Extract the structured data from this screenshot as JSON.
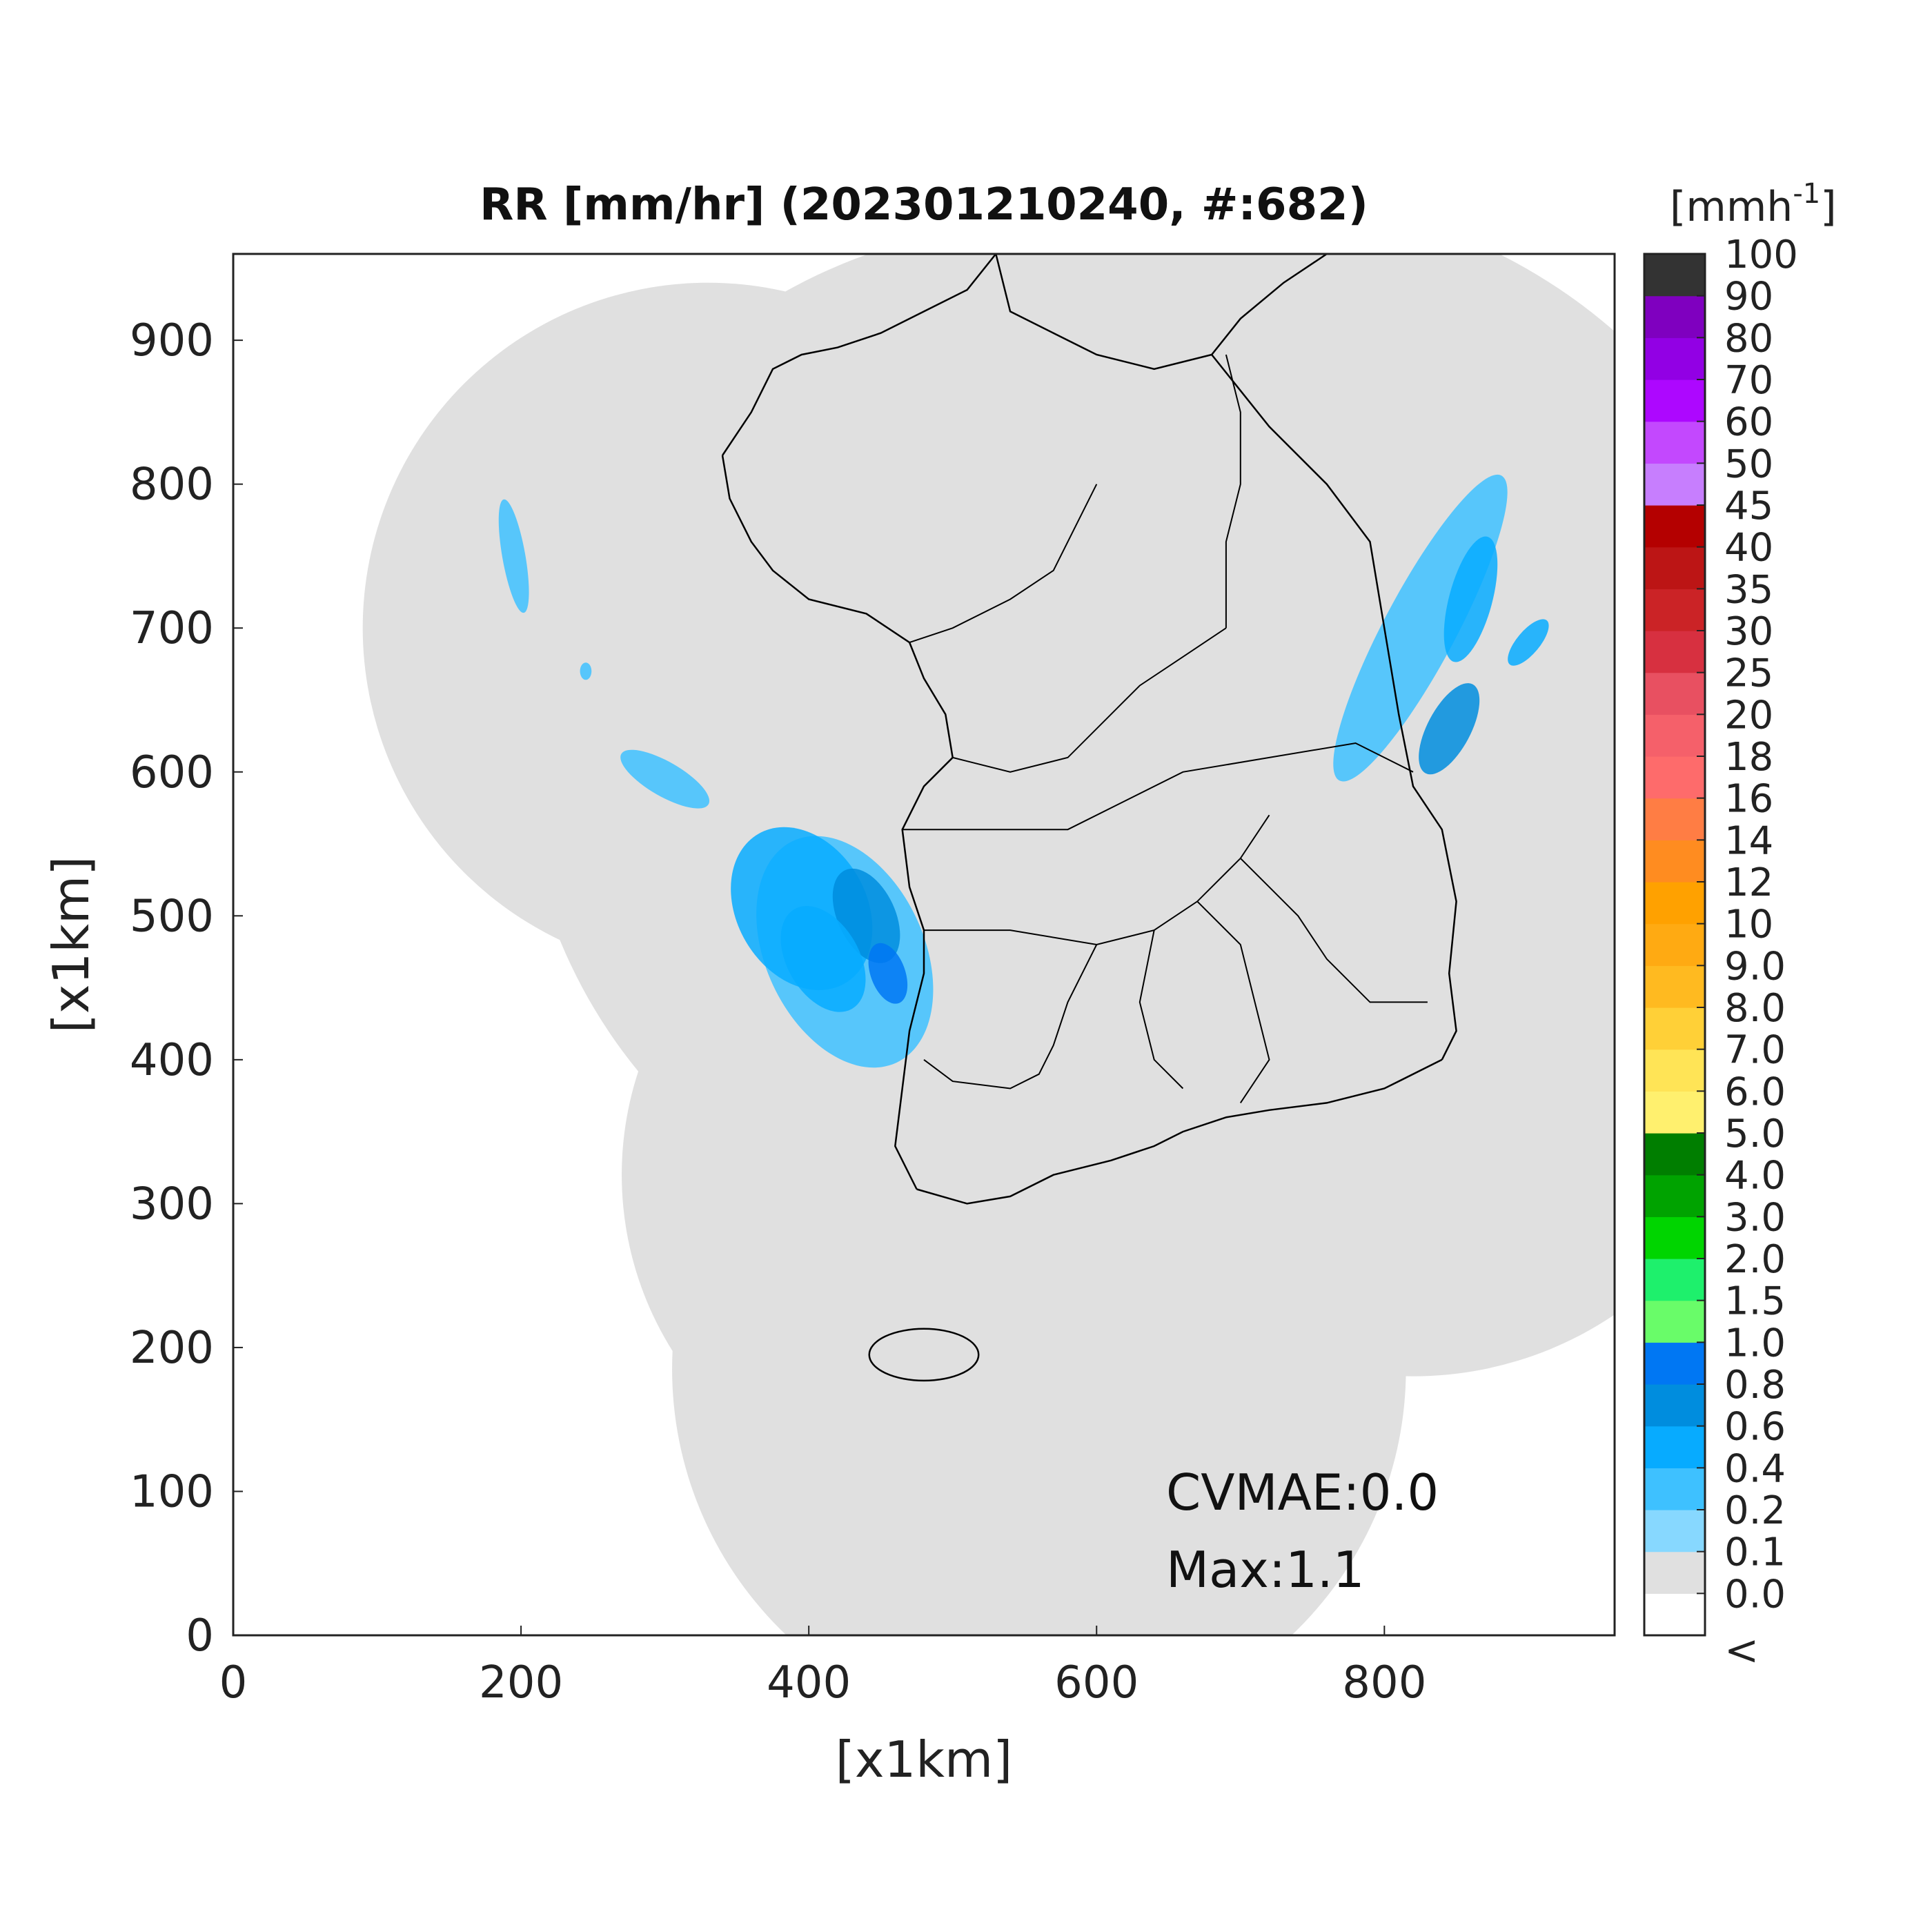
{
  "title": "RR [mm/hr] (202301210240, #:682)",
  "x_axis": {
    "label": "[x1km]",
    "ticks": [
      "0",
      "200",
      "400",
      "600",
      "800"
    ],
    "range": [
      0,
      960
    ]
  },
  "y_axis": {
    "label": "[x1km]",
    "ticks": [
      "0",
      "100",
      "200",
      "300",
      "400",
      "500",
      "600",
      "700",
      "800",
      "900"
    ],
    "range": [
      0,
      960
    ]
  },
  "colorbar": {
    "unit_base": "[mmh",
    "unit_exp": "-1",
    "unit_close": "]",
    "below_label": "<",
    "levels": [
      "0.0",
      "0.1",
      "0.2",
      "0.4",
      "0.6",
      "0.8",
      "1.0",
      "1.5",
      "2.0",
      "3.0",
      "4.0",
      "5.0",
      "6.0",
      "7.0",
      "8.0",
      "9.0",
      "10",
      "12",
      "14",
      "16",
      "18",
      "20",
      "25",
      "30",
      "35",
      "40",
      "45",
      "50",
      "60",
      "70",
      "80",
      "90",
      "100"
    ],
    "colors": [
      "#ffffff",
      "#e0e0e0",
      "#87d8ff",
      "#3ec1ff",
      "#07abff",
      "#008dde",
      "#0077f3",
      "#69fc69",
      "#1ef06c",
      "#00d500",
      "#00a300",
      "#007e00",
      "#fff06e",
      "#ffe456",
      "#ffd037",
      "#ffba20",
      "#ffaa12",
      "#ffa100",
      "#ff8c20",
      "#ff7d44",
      "#fe6b6b",
      "#f5606a",
      "#e85061",
      "#d73040",
      "#cb2326",
      "#bc1515",
      "#b40000",
      "#c77efe",
      "#c348fe",
      "#ad07ff",
      "#9200e4",
      "#7f00bf",
      "#333333"
    ]
  },
  "annotations": {
    "cvmae": "CVMAE:0.0",
    "max": "Max:1.1"
  },
  "map": {
    "background": "#e0e0e0",
    "coverage_circles_km": [
      {
        "center": [
          330,
          700
        ],
        "radius": 240
      },
      {
        "center": [
          560,
          620
        ],
        "radius": 360
      },
      {
        "center": [
          710,
          620
        ],
        "radius": 380
      },
      {
        "center": [
          500,
          320
        ],
        "radius": 230
      },
      {
        "center": [
          560,
          185
        ],
        "radius": 255
      },
      {
        "center": [
          820,
          430
        ],
        "radius": 250
      }
    ],
    "precip_cells_km": [
      {
        "c": [
          425,
          475
        ],
        "r": [
          55,
          85
        ],
        "rot": -25,
        "level": "0.2"
      },
      {
        "c": [
          395,
          505
        ],
        "r": [
          45,
          60
        ],
        "rot": -30,
        "level": "0.4"
      },
      {
        "c": [
          440,
          500
        ],
        "r": [
          20,
          35
        ],
        "rot": -25,
        "level": "0.6"
      },
      {
        "c": [
          410,
          470
        ],
        "r": [
          25,
          40
        ],
        "rot": -30,
        "level": "0.4"
      },
      {
        "c": [
          455,
          460
        ],
        "r": [
          12,
          22
        ],
        "rot": -20,
        "level": "0.8"
      },
      {
        "c": [
          300,
          595
        ],
        "r": [
          12,
          35
        ],
        "rot": -60,
        "level": "0.2"
      },
      {
        "c": [
          245,
          670
        ],
        "r": [
          4,
          6
        ],
        "rot": 0,
        "level": "0.2"
      },
      {
        "c": [
          195,
          750
        ],
        "r": [
          8,
          40
        ],
        "rot": -10,
        "level": "0.2"
      },
      {
        "c": [
          825,
          700
        ],
        "r": [
          25,
          120
        ],
        "rot": 28,
        "level": "0.2"
      },
      {
        "c": [
          845,
          630
        ],
        "r": [
          15,
          35
        ],
        "rot": 28,
        "level": "0.6"
      },
      {
        "c": [
          860,
          720
        ],
        "r": [
          15,
          45
        ],
        "rot": 15,
        "level": "0.4"
      },
      {
        "c": [
          900,
          690
        ],
        "r": [
          8,
          20
        ],
        "rot": 40,
        "level": "0.4"
      }
    ],
    "coastline_km": [
      [
        [
          530,
          960
        ],
        [
          540,
          920
        ],
        [
          570,
          905
        ],
        [
          600,
          890
        ],
        [
          640,
          880
        ],
        [
          680,
          890
        ],
        [
          700,
          915
        ],
        [
          730,
          940
        ],
        [
          760,
          960
        ]
      ],
      [
        [
          680,
          890
        ],
        [
          720,
          840
        ],
        [
          760,
          800
        ],
        [
          790,
          760
        ],
        [
          800,
          700
        ],
        [
          810,
          640
        ],
        [
          820,
          590
        ],
        [
          840,
          560
        ],
        [
          850,
          510
        ],
        [
          845,
          460
        ],
        [
          850,
          420
        ],
        [
          840,
          400
        ]
      ],
      [
        [
          840,
          400
        ],
        [
          800,
          380
        ],
        [
          760,
          370
        ],
        [
          720,
          365
        ],
        [
          690,
          360
        ],
        [
          660,
          350
        ],
        [
          640,
          340
        ],
        [
          610,
          330
        ],
        [
          570,
          320
        ],
        [
          540,
          305
        ],
        [
          510,
          300
        ],
        [
          475,
          310
        ]
      ],
      [
        [
          475,
          310
        ],
        [
          460,
          340
        ],
        [
          465,
          380
        ],
        [
          470,
          420
        ],
        [
          480,
          460
        ],
        [
          480,
          490
        ],
        [
          470,
          520
        ],
        [
          465,
          560
        ],
        [
          480,
          590
        ],
        [
          500,
          610
        ],
        [
          495,
          640
        ],
        [
          480,
          665
        ],
        [
          470,
          690
        ],
        [
          440,
          710
        ],
        [
          400,
          720
        ],
        [
          375,
          740
        ],
        [
          360,
          760
        ],
        [
          345,
          790
        ],
        [
          340,
          820
        ]
      ],
      [
        [
          340,
          820
        ],
        [
          360,
          850
        ],
        [
          375,
          880
        ],
        [
          395,
          890
        ],
        [
          420,
          895
        ],
        [
          450,
          905
        ],
        [
          480,
          920
        ],
        [
          510,
          935
        ],
        [
          530,
          960
        ]
      ]
    ],
    "jeju_km": {
      "c": [
        480,
        195
      ],
      "r": [
        38,
        18
      ]
    },
    "internal_borders_km": [
      [
        [
          470,
          690
        ],
        [
          500,
          700
        ],
        [
          540,
          720
        ],
        [
          570,
          740
        ],
        [
          590,
          780
        ],
        [
          600,
          800
        ]
      ],
      [
        [
          500,
          610
        ],
        [
          540,
          600
        ],
        [
          580,
          610
        ],
        [
          610,
          640
        ],
        [
          630,
          660
        ],
        [
          660,
          680
        ],
        [
          690,
          700
        ]
      ],
      [
        [
          465,
          560
        ],
        [
          520,
          560
        ],
        [
          580,
          560
        ],
        [
          620,
          580
        ],
        [
          660,
          600
        ],
        [
          720,
          610
        ],
        [
          780,
          620
        ],
        [
          820,
          600
        ]
      ],
      [
        [
          480,
          490
        ],
        [
          540,
          490
        ],
        [
          600,
          480
        ],
        [
          640,
          490
        ],
        [
          670,
          510
        ],
        [
          700,
          540
        ],
        [
          720,
          570
        ]
      ],
      [
        [
          640,
          490
        ],
        [
          630,
          440
        ],
        [
          640,
          400
        ],
        [
          660,
          380
        ]
      ],
      [
        [
          600,
          480
        ],
        [
          580,
          440
        ],
        [
          570,
          410
        ],
        [
          560,
          390
        ],
        [
          540,
          380
        ],
        [
          500,
          385
        ],
        [
          480,
          400
        ]
      ],
      [
        [
          700,
          540
        ],
        [
          720,
          520
        ],
        [
          740,
          500
        ],
        [
          760,
          470
        ],
        [
          790,
          440
        ],
        [
          830,
          440
        ]
      ],
      [
        [
          670,
          510
        ],
        [
          700,
          480
        ],
        [
          710,
          440
        ],
        [
          720,
          400
        ],
        [
          700,
          370
        ]
      ],
      [
        [
          690,
          700
        ],
        [
          690,
          760
        ],
        [
          700,
          800
        ],
        [
          700,
          850
        ],
        [
          690,
          890
        ]
      ]
    ]
  }
}
